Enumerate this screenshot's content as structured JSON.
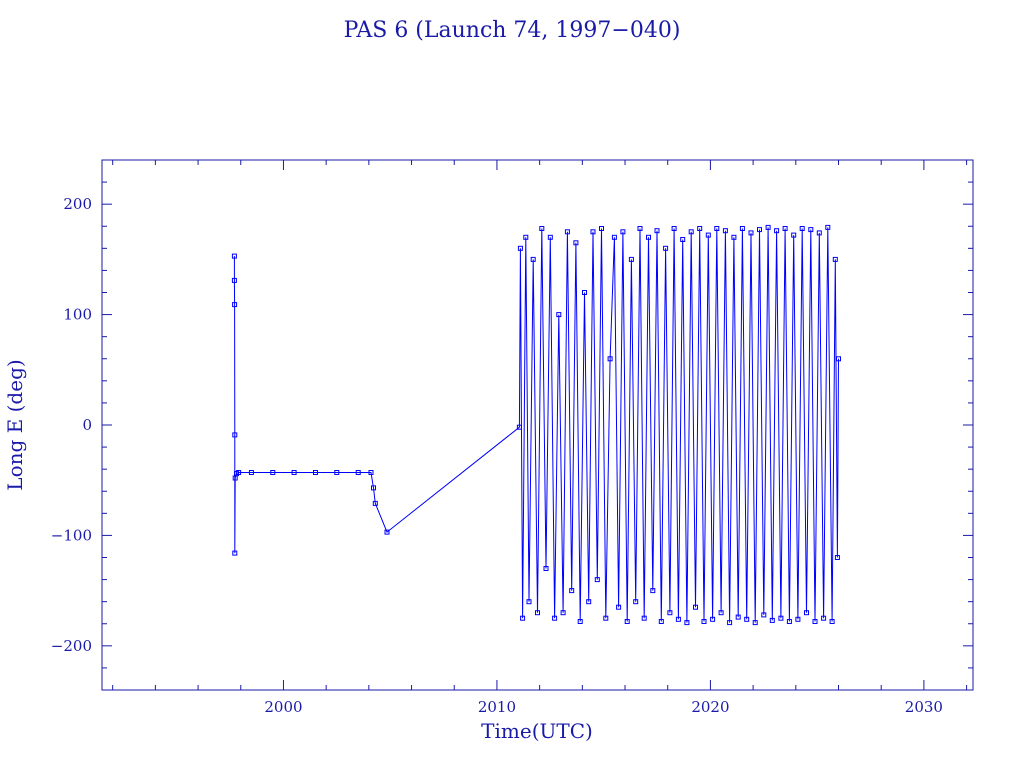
{
  "colors": {
    "axes": "#1a1aa8",
    "series": "#0000ff",
    "background": "#ffffff"
  },
  "chart_data": {
    "type": "line",
    "title": "PAS 6 (Launch 74, 1997−040)",
    "xlabel": "Time(UTC)",
    "ylabel": "Long E (deg)",
    "xlim": [
      1991.5,
      2032.3
    ],
    "ylim": [
      -240,
      240
    ],
    "x_ticks": [
      2000,
      2010,
      2020,
      2030
    ],
    "x_tick_labels": [
      "2000",
      "2010",
      "2020",
      "2030"
    ],
    "y_ticks": [
      -200,
      -100,
      0,
      100,
      200
    ],
    "y_tick_labels": [
      "−200",
      "−100",
      "0",
      "100",
      "200"
    ],
    "marker": "square",
    "grid": false,
    "series": [
      {
        "points": [
          [
            1997.7,
            153
          ],
          [
            1997.7,
            131
          ],
          [
            1997.71,
            109
          ],
          [
            1997.72,
            -9
          ],
          [
            1997.72,
            -116
          ],
          [
            1997.74,
            -48
          ],
          [
            1997.8,
            -44
          ],
          [
            1997.9,
            -43
          ],
          [
            1998.5,
            -43
          ],
          [
            1999.5,
            -43
          ],
          [
            2000.5,
            -43
          ],
          [
            2001.5,
            -43
          ],
          [
            2002.5,
            -43
          ],
          [
            2003.5,
            -43
          ],
          [
            2004.1,
            -43
          ],
          [
            2004.22,
            -57
          ],
          [
            2004.3,
            -71
          ],
          [
            2004.85,
            -97
          ],
          [
            2011.05,
            -2
          ],
          [
            2011.1,
            160
          ],
          [
            2011.2,
            -175
          ],
          [
            2011.35,
            170
          ],
          [
            2011.5,
            -160
          ],
          [
            2011.7,
            150
          ],
          [
            2011.9,
            -170
          ],
          [
            2012.1,
            178
          ],
          [
            2012.3,
            -130
          ],
          [
            2012.5,
            170
          ],
          [
            2012.7,
            -175
          ],
          [
            2012.9,
            100
          ],
          [
            2013.1,
            -170
          ],
          [
            2013.3,
            175
          ],
          [
            2013.5,
            -150
          ],
          [
            2013.7,
            165
          ],
          [
            2013.9,
            -178
          ],
          [
            2014.1,
            120
          ],
          [
            2014.3,
            -160
          ],
          [
            2014.5,
            175
          ],
          [
            2014.7,
            -140
          ],
          [
            2014.9,
            178
          ],
          [
            2015.1,
            -175
          ],
          [
            2015.3,
            60
          ],
          [
            2015.5,
            170
          ],
          [
            2015.7,
            -165
          ],
          [
            2015.9,
            175
          ],
          [
            2016.1,
            -178
          ],
          [
            2016.3,
            150
          ],
          [
            2016.5,
            -160
          ],
          [
            2016.7,
            178
          ],
          [
            2016.9,
            -175
          ],
          [
            2017.1,
            170
          ],
          [
            2017.3,
            -150
          ],
          [
            2017.5,
            176
          ],
          [
            2017.7,
            -178
          ],
          [
            2017.9,
            160
          ],
          [
            2018.1,
            -170
          ],
          [
            2018.3,
            178
          ],
          [
            2018.5,
            -176
          ],
          [
            2018.7,
            168
          ],
          [
            2018.9,
            -179
          ],
          [
            2019.1,
            175
          ],
          [
            2019.3,
            -165
          ],
          [
            2019.5,
            178
          ],
          [
            2019.7,
            -178
          ],
          [
            2019.9,
            172
          ],
          [
            2020.1,
            -176
          ],
          [
            2020.3,
            178
          ],
          [
            2020.5,
            -170
          ],
          [
            2020.7,
            176
          ],
          [
            2020.9,
            -179
          ],
          [
            2021.1,
            170
          ],
          [
            2021.3,
            -174
          ],
          [
            2021.5,
            178
          ],
          [
            2021.7,
            -176
          ],
          [
            2021.9,
            174
          ],
          [
            2022.1,
            -179
          ],
          [
            2022.3,
            177
          ],
          [
            2022.5,
            -172
          ],
          [
            2022.7,
            179
          ],
          [
            2022.9,
            -177
          ],
          [
            2023.1,
            176
          ],
          [
            2023.3,
            -175
          ],
          [
            2023.5,
            178
          ],
          [
            2023.7,
            -178
          ],
          [
            2023.9,
            172
          ],
          [
            2024.1,
            -176
          ],
          [
            2024.3,
            178
          ],
          [
            2024.5,
            -170
          ],
          [
            2024.7,
            177
          ],
          [
            2024.9,
            -178
          ],
          [
            2025.1,
            174
          ],
          [
            2025.3,
            -175
          ],
          [
            2025.5,
            179
          ],
          [
            2025.7,
            -178
          ],
          [
            2025.85,
            150
          ],
          [
            2025.95,
            -120
          ],
          [
            2026.0,
            60
          ]
        ]
      }
    ]
  }
}
